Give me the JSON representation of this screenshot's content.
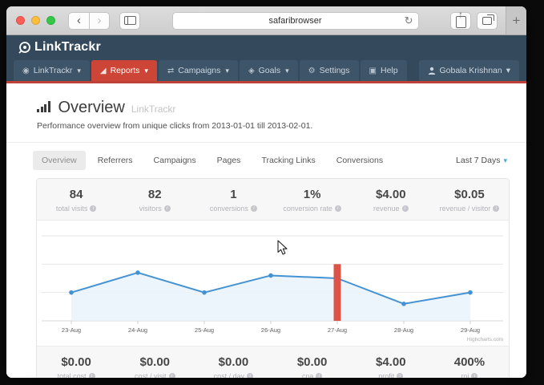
{
  "browser": {
    "address": "safaribrowser"
  },
  "navbar": {
    "logo": "LinkTrackr",
    "items": [
      {
        "label": "LinkTrackr",
        "icon": "globe",
        "caret": true,
        "active": false
      },
      {
        "label": "Reports",
        "icon": "bar-chart",
        "caret": true,
        "active": true
      },
      {
        "label": "Campaigns",
        "icon": "shuffle",
        "caret": true,
        "active": false
      },
      {
        "label": "Goals",
        "icon": "target",
        "caret": true,
        "active": false
      },
      {
        "label": "Settings",
        "icon": "wrench",
        "caret": false,
        "active": false
      },
      {
        "label": "Help",
        "icon": "help-box",
        "caret": false,
        "active": false
      }
    ],
    "user": "Gobala Krishnan"
  },
  "header": {
    "title": "Overview",
    "title_suffix": "LinkTrackr",
    "subtitle": "Performance overview from unique clicks from 2013-01-01 till 2013-02-01."
  },
  "tabs": [
    "Overview",
    "Referrers",
    "Campaigns",
    "Pages",
    "Tracking Links",
    "Conversions"
  ],
  "active_tab": "Overview",
  "date_range": "Last 7 Days",
  "stats_top": [
    {
      "value": "84",
      "label": "total visits"
    },
    {
      "value": "82",
      "label": "visitors"
    },
    {
      "value": "1",
      "label": "conversions"
    },
    {
      "value": "1%",
      "label": "conversion rate"
    },
    {
      "value": "$4.00",
      "label": "revenue"
    },
    {
      "value": "$0.05",
      "label": "revenue / visitor"
    }
  ],
  "stats_bottom": [
    {
      "value": "$0.00",
      "label": "total cost"
    },
    {
      "value": "$0.00",
      "label": "cost / visit"
    },
    {
      "value": "$0.00",
      "label": "cost / day"
    },
    {
      "value": "$0.00",
      "label": "cpa"
    },
    {
      "value": "$4.00",
      "label": "profit"
    },
    {
      "value": "400%",
      "label": "roi"
    }
  ],
  "chart_data": {
    "type": "area",
    "categories": [
      "23-Aug",
      "24-Aug",
      "25-Aug",
      "26-Aug",
      "27-Aug",
      "28-Aug",
      "29-Aug"
    ],
    "values": [
      10,
      17,
      10,
      16,
      15,
      6,
      10
    ],
    "series_name": "visits",
    "ylim": [
      0,
      30
    ],
    "grid_step": 10,
    "grid": true,
    "legend": "none",
    "highlight_bar": {
      "category": "27-Aug",
      "index": 4,
      "from": 0,
      "to": 20,
      "color": "#dc5347"
    },
    "line_color": "#4592d3",
    "fill_color": "#e9f2fb",
    "credit": "Highcharts.com"
  },
  "colors": {
    "navy": "#35495d",
    "nav_button": "#3e5468",
    "active_red": "#cd4536",
    "underline_red": "#bf4239",
    "chart_line_blue": "#4592d3",
    "chart_fill_blue": "#e9f2fb",
    "highlight_red": "#dc5347",
    "panel_gray": "#f7f7f8"
  }
}
